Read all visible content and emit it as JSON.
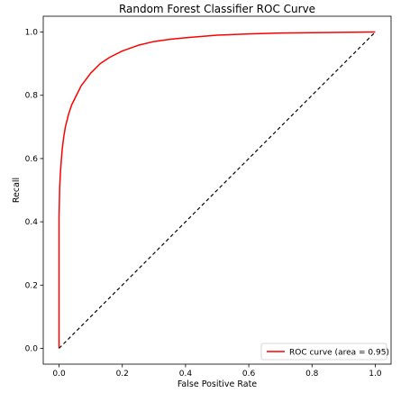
{
  "chart_data": {
    "type": "line",
    "title": "Random Forest Classifier ROC Curve",
    "xlabel": "False Positive Rate",
    "ylabel": "Recall",
    "xlim": [
      -0.05,
      1.05
    ],
    "ylim": [
      -0.05,
      1.05
    ],
    "xticks": [
      "0.0",
      "0.2",
      "0.4",
      "0.6",
      "0.8",
      "1.0"
    ],
    "yticks": [
      "0.0",
      "0.2",
      "0.4",
      "0.6",
      "0.8",
      "1.0"
    ],
    "grid": false,
    "legend_position": "lower-right",
    "series": [
      {
        "name": "ROC curve (area = 0.95)",
        "color": "#ff0000",
        "style": "solid",
        "x": [
          0.0,
          0.0,
          0.002,
          0.004,
          0.006,
          0.01,
          0.015,
          0.02,
          0.03,
          0.04,
          0.05,
          0.07,
          0.1,
          0.13,
          0.16,
          0.2,
          0.25,
          0.3,
          0.35,
          0.4,
          0.5,
          0.6,
          0.7,
          0.8,
          0.9,
          1.0
        ],
        "y": [
          0.0,
          0.42,
          0.51,
          0.55,
          0.58,
          0.63,
          0.67,
          0.7,
          0.74,
          0.77,
          0.79,
          0.83,
          0.87,
          0.9,
          0.92,
          0.94,
          0.958,
          0.97,
          0.977,
          0.982,
          0.99,
          0.994,
          0.997,
          0.998,
          0.999,
          1.0
        ]
      },
      {
        "name": "",
        "color": "#000000",
        "style": "dashed",
        "x": [
          0.0,
          1.0
        ],
        "y": [
          0.0,
          1.0
        ]
      }
    ]
  }
}
